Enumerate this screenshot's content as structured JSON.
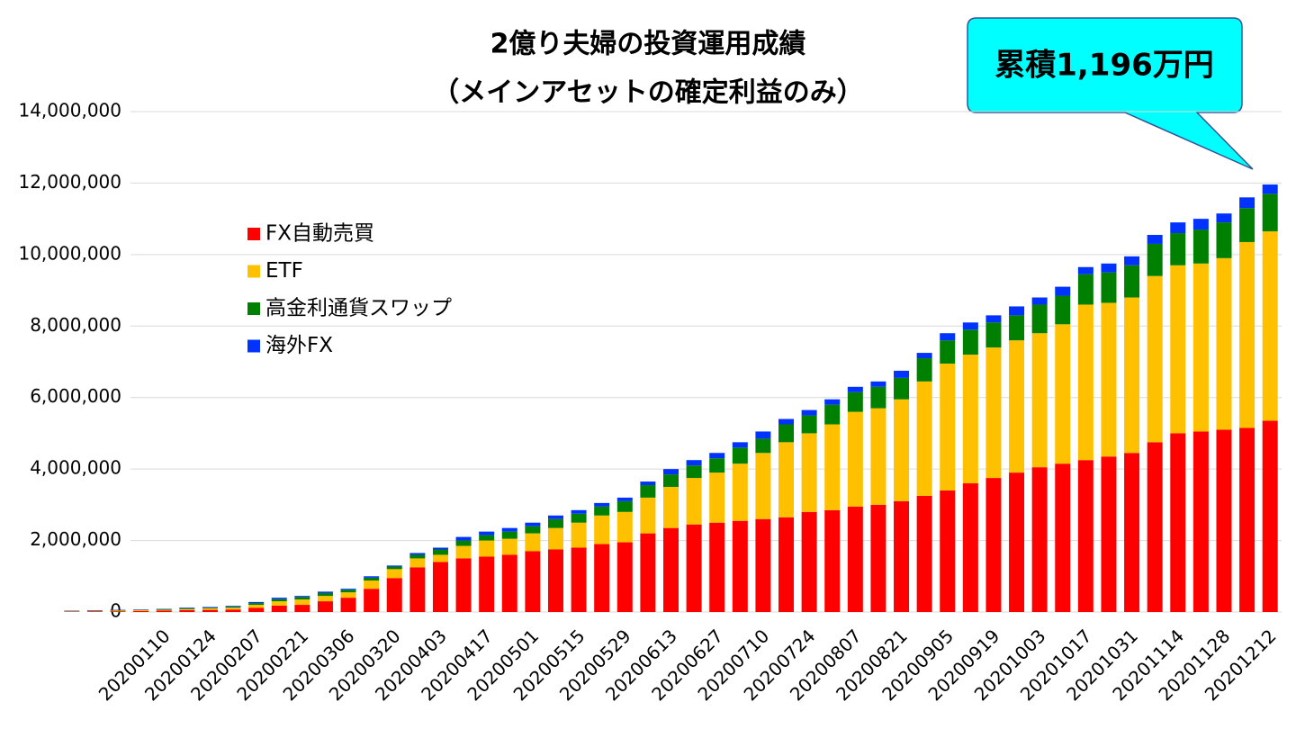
{
  "chart_data": {
    "type": "stacked_bar",
    "title": [
      "2億り夫婦の投資運用成績",
      "（メインアセットの確定利益のみ）"
    ],
    "annotation": "累積1,196万円",
    "categories": [
      null,
      null,
      null,
      null,
      "20200110",
      null,
      "20200124",
      null,
      "20200207",
      null,
      "20200221",
      null,
      "20200306",
      null,
      "20200320",
      null,
      "20200403",
      null,
      "20200417",
      null,
      "20200501",
      null,
      "20200515",
      null,
      "20200529",
      null,
      "20200613",
      null,
      "20200627",
      null,
      "20200710",
      null,
      "20200724",
      null,
      "20200807",
      null,
      "20200821",
      null,
      "20200905",
      null,
      "20200919",
      null,
      "20201003",
      null,
      "20201017",
      null,
      "20201031",
      null,
      "20201114",
      null,
      "20201128",
      null,
      "20201212"
    ],
    "series": [
      {
        "name": "FX自動売買",
        "color": "#ff0000",
        "values": [
          10000,
          20000,
          20000,
          30000,
          40000,
          50000,
          60000,
          70000,
          120000,
          180000,
          200000,
          300000,
          400000,
          650000,
          950000,
          1250000,
          1400000,
          1500000,
          1550000,
          1600000,
          1700000,
          1750000,
          1800000,
          1900000,
          1950000,
          2200000,
          2350000,
          2450000,
          2500000,
          2550000,
          2600000,
          2650000,
          2800000,
          2850000,
          2950000,
          3000000,
          3100000,
          3250000,
          3400000,
          3600000,
          3750000,
          3900000,
          4050000,
          4150000,
          4250000,
          4350000,
          4450000,
          4750000,
          5000000,
          5050000,
          5100000,
          5150000,
          5350000
        ]
      },
      {
        "name": "ETF",
        "color": "#ffc000",
        "values": [
          10000,
          10000,
          20000,
          20000,
          20000,
          30000,
          40000,
          50000,
          80000,
          120000,
          150000,
          150000,
          150000,
          230000,
          250000,
          250000,
          200000,
          350000,
          450000,
          450000,
          500000,
          600000,
          700000,
          800000,
          850000,
          1000000,
          1150000,
          1300000,
          1400000,
          1600000,
          1850000,
          2100000,
          2200000,
          2400000,
          2650000,
          2700000,
          2850000,
          3200000,
          3550000,
          3600000,
          3650000,
          3700000,
          3750000,
          3900000,
          4350000,
          4300000,
          4350000,
          4650000,
          4700000,
          4700000,
          4800000,
          5200000,
          5300000
        ]
      },
      {
        "name": "高金利通貨スワップ",
        "color": "#008000",
        "values": [
          10000,
          10000,
          10000,
          10000,
          20000,
          20000,
          20000,
          30000,
          50000,
          60000,
          70000,
          80000,
          70000,
          80000,
          70000,
          100000,
          150000,
          150000,
          150000,
          200000,
          200000,
          250000,
          250000,
          250000,
          300000,
          350000,
          350000,
          350000,
          400000,
          450000,
          400000,
          500000,
          500000,
          550000,
          550000,
          600000,
          600000,
          650000,
          650000,
          700000,
          700000,
          700000,
          800000,
          800000,
          850000,
          850000,
          900000,
          900000,
          900000,
          950000,
          1000000,
          950000,
          1050000
        ]
      },
      {
        "name": "海外FX",
        "color": "#0033ff",
        "values": [
          10000,
          10000,
          10000,
          10000,
          10000,
          20000,
          20000,
          20000,
          30000,
          40000,
          30000,
          40000,
          30000,
          40000,
          30000,
          50000,
          50000,
          100000,
          100000,
          100000,
          100000,
          100000,
          100000,
          100000,
          100000,
          100000,
          150000,
          150000,
          150000,
          150000,
          200000,
          150000,
          150000,
          150000,
          150000,
          150000,
          200000,
          150000,
          200000,
          200000,
          200000,
          250000,
          200000,
          250000,
          200000,
          250000,
          250000,
          250000,
          300000,
          300000,
          250000,
          300000,
          260000
        ]
      }
    ],
    "ylim": [
      0,
      14000000
    ],
    "yticks": [
      0,
      {
        "value": 2000000,
        "label": "2,000,000"
      },
      {
        "value": 4000000,
        "label": "4,000,000"
      },
      {
        "value": 6000000,
        "label": "6,000,000"
      },
      {
        "value": 8000000,
        "label": "8,000,000"
      },
      {
        "value": 10000000,
        "label": "10,000,000"
      },
      {
        "value": 12000000,
        "label": "12,000,000"
      },
      {
        "value": 14000000,
        "label": "14,000,000"
      }
    ],
    "grid": true
  }
}
